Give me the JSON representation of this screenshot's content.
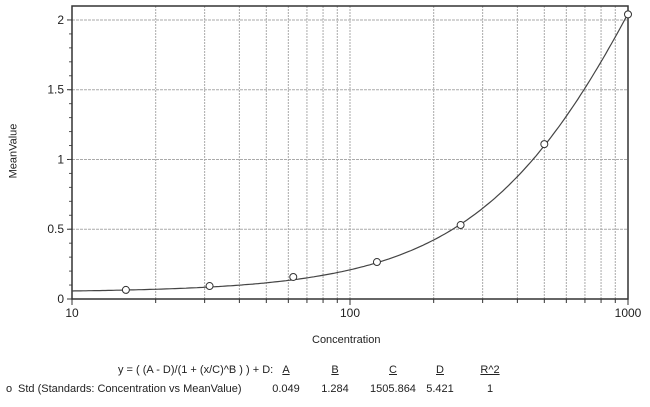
{
  "chart_data": {
    "type": "scatter",
    "title": "",
    "xlabel": "Concentration",
    "ylabel": "MeanValue",
    "xscale": "log",
    "xlim": [
      10,
      1000
    ],
    "ylim": [
      0,
      2.1
    ],
    "xticks": [
      "10",
      "100",
      "1000"
    ],
    "yticks": [
      "0",
      "0.5",
      "1",
      "1.5",
      "2"
    ],
    "ytick_values": [
      0,
      0.5,
      1,
      1.5,
      2
    ],
    "grid": true,
    "points": {
      "x": [
        15.625,
        31.25,
        62.5,
        125,
        250,
        500,
        1000
      ],
      "y": [
        0.065,
        0.093,
        0.158,
        0.265,
        0.53,
        1.11,
        2.04
      ]
    },
    "fit": {
      "equation": "y = ( (A - D)/(1 + (x/C)^B ) ) + D:",
      "A": 0.049,
      "B": 1.284,
      "C": 1505.864,
      "D": 5.421
    },
    "legend": {
      "marker": "o",
      "series_label": "Std (Standards: Concentration vs MeanValue)",
      "headers": [
        "A",
        "B",
        "C",
        "D",
        "R^2"
      ],
      "values": [
        "0.049",
        "1.284",
        "1505.864",
        "5.421",
        "1"
      ]
    }
  }
}
